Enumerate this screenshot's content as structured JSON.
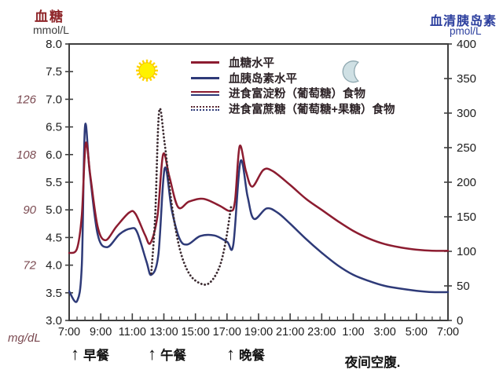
{
  "titles": {
    "glucose_axis": "血糖",
    "glucose_unit": "mmol/L",
    "insulin_axis": "血清胰岛素",
    "insulin_unit": "pmol/L",
    "mgdl_label": "mg/dL"
  },
  "colors": {
    "glucose_line": "#8c1c30",
    "insulin_line": "#2e3a78",
    "sucrose_dotted_line": "#3b2a30",
    "axis": "#3f3f3f",
    "tick_text": "#1d1d1d",
    "mgdl_text": "#7c4b52",
    "glucose_title": "#8e2428",
    "insulin_title": "#2c3f9e",
    "sun_fill": "#fff200",
    "moon_fill": "#cfe0e4"
  },
  "legend": {
    "items": [
      {
        "label": "血糖水平",
        "swatch": "solid-red"
      },
      {
        "label": "血胰岛素水平",
        "swatch": "solid-blue"
      },
      {
        "label": "进食富淀粉（葡萄糖）食物",
        "swatch": "double-solid"
      },
      {
        "label": "进食富蔗糖（葡萄糖+果糖）食物",
        "swatch": "double-dotted"
      }
    ]
  },
  "annotations": {
    "meals": [
      {
        "label": "早餐",
        "hour": 7.55
      },
      {
        "label": "午餐",
        "hour": 12.43
      },
      {
        "label": "晚餐",
        "hour": 17.41
      }
    ],
    "fasting": {
      "label": "夜间空腹.",
      "hour_center": 26.2
    }
  },
  "chart_data": {
    "type": "line",
    "x_axis": {
      "unit": "time-of-day",
      "start_hour": 7,
      "end_hour": 31,
      "minor_tick_interval_hours": 0.5,
      "major_tick_interval_hours": 2,
      "ticks": [
        {
          "hour": 7,
          "label": "7:00"
        },
        {
          "hour": 9,
          "label": "9:00"
        },
        {
          "hour": 11,
          "label": "11:00"
        },
        {
          "hour": 13,
          "label": "13:00"
        },
        {
          "hour": 15,
          "label": "15:00"
        },
        {
          "hour": 17,
          "label": "17:00"
        },
        {
          "hour": 19,
          "label": "19:00"
        },
        {
          "hour": 21,
          "label": "21:00"
        },
        {
          "hour": 23,
          "label": "23:00"
        },
        {
          "hour": 25,
          "label": "1:00"
        },
        {
          "hour": 27,
          "label": "3:00"
        },
        {
          "hour": 29,
          "label": "5:00"
        },
        {
          "hour": 31,
          "label": "7:00"
        }
      ]
    },
    "y_left": {
      "label": "血糖 mmol/L",
      "range": [
        3.0,
        8.0
      ],
      "tick_step": 0.5,
      "mgdl_ticks": [
        {
          "mmol": 7.0,
          "label": "126"
        },
        {
          "mmol": 6.0,
          "label": "108"
        },
        {
          "mmol": 5.0,
          "label": "90"
        },
        {
          "mmol": 4.0,
          "label": "72"
        }
      ]
    },
    "y_right": {
      "label": "血清胰岛素 pmol/L",
      "range": [
        0,
        400
      ],
      "tick_step": 50
    },
    "series": [
      {
        "name": "血胰岛素水平",
        "axis": "right",
        "style": "solid",
        "color": "#2e3a78",
        "points": [
          [
            7.0,
            42
          ],
          [
            7.5,
            28
          ],
          [
            7.8,
            80
          ],
          [
            8.0,
            280
          ],
          [
            8.3,
            215
          ],
          [
            8.8,
            125
          ],
          [
            9.4,
            106
          ],
          [
            10.2,
            125
          ],
          [
            10.9,
            133
          ],
          [
            11.3,
            128
          ],
          [
            11.9,
            85
          ],
          [
            12.2,
            66
          ],
          [
            12.65,
            95
          ],
          [
            13.05,
            220
          ],
          [
            13.5,
            160
          ],
          [
            14.0,
            118
          ],
          [
            14.5,
            110
          ],
          [
            15.3,
            122
          ],
          [
            16.2,
            123
          ],
          [
            17.0,
            114
          ],
          [
            17.4,
            110
          ],
          [
            17.85,
            230
          ],
          [
            18.3,
            180
          ],
          [
            18.7,
            147
          ],
          [
            19.5,
            162
          ],
          [
            20.2,
            156
          ],
          [
            21.0,
            140
          ],
          [
            22.0,
            118
          ],
          [
            23.0,
            98
          ],
          [
            24.0,
            80
          ],
          [
            25.0,
            66
          ],
          [
            26.0,
            57
          ],
          [
            27.0,
            50
          ],
          [
            28.0,
            46
          ],
          [
            29.0,
            43
          ],
          [
            30.0,
            41
          ],
          [
            31.0,
            41
          ]
        ]
      },
      {
        "name": "血糖水平",
        "axis": "left",
        "style": "solid",
        "color": "#8c1c30",
        "points": [
          [
            7.0,
            4.22
          ],
          [
            7.5,
            4.3
          ],
          [
            7.8,
            4.9
          ],
          [
            8.05,
            6.2
          ],
          [
            8.35,
            5.6
          ],
          [
            8.8,
            4.7
          ],
          [
            9.3,
            4.45
          ],
          [
            10.0,
            4.7
          ],
          [
            10.8,
            4.95
          ],
          [
            11.2,
            4.93
          ],
          [
            11.8,
            4.55
          ],
          [
            12.15,
            4.4
          ],
          [
            12.6,
            4.9
          ],
          [
            12.95,
            6.0
          ],
          [
            13.35,
            5.6
          ],
          [
            13.9,
            5.05
          ],
          [
            14.6,
            5.15
          ],
          [
            15.5,
            5.2
          ],
          [
            16.5,
            5.08
          ],
          [
            17.2,
            4.98
          ],
          [
            17.5,
            5.15
          ],
          [
            17.8,
            6.15
          ],
          [
            18.2,
            5.7
          ],
          [
            18.6,
            5.42
          ],
          [
            19.3,
            5.72
          ],
          [
            19.9,
            5.7
          ],
          [
            21.0,
            5.45
          ],
          [
            22.0,
            5.2
          ],
          [
            23.0,
            5.0
          ],
          [
            24.0,
            4.8
          ],
          [
            25.0,
            4.62
          ],
          [
            26.0,
            4.48
          ],
          [
            27.0,
            4.38
          ],
          [
            28.0,
            4.32
          ],
          [
            29.0,
            4.28
          ],
          [
            30.0,
            4.26
          ],
          [
            31.0,
            4.26
          ]
        ]
      },
      {
        "name": "进食富蔗糖（葡萄糖+果糖）食物",
        "axis": "left",
        "style": "dotted",
        "color": "#3b2a30",
        "points": [
          [
            12.2,
            3.85
          ],
          [
            12.45,
            4.9
          ],
          [
            12.7,
            6.78
          ],
          [
            13.05,
            6.2
          ],
          [
            13.5,
            5.1
          ],
          [
            14.0,
            4.3
          ],
          [
            14.6,
            3.85
          ],
          [
            15.3,
            3.67
          ],
          [
            15.9,
            3.68
          ],
          [
            16.5,
            3.95
          ],
          [
            16.9,
            4.4
          ],
          [
            17.25,
            5.05
          ]
        ]
      }
    ],
    "markers": [
      {
        "name": "sun",
        "hour": 11.93,
        "mmol": 7.52
      },
      {
        "name": "moon",
        "hour": 25.07,
        "mmol": 7.5
      }
    ]
  }
}
